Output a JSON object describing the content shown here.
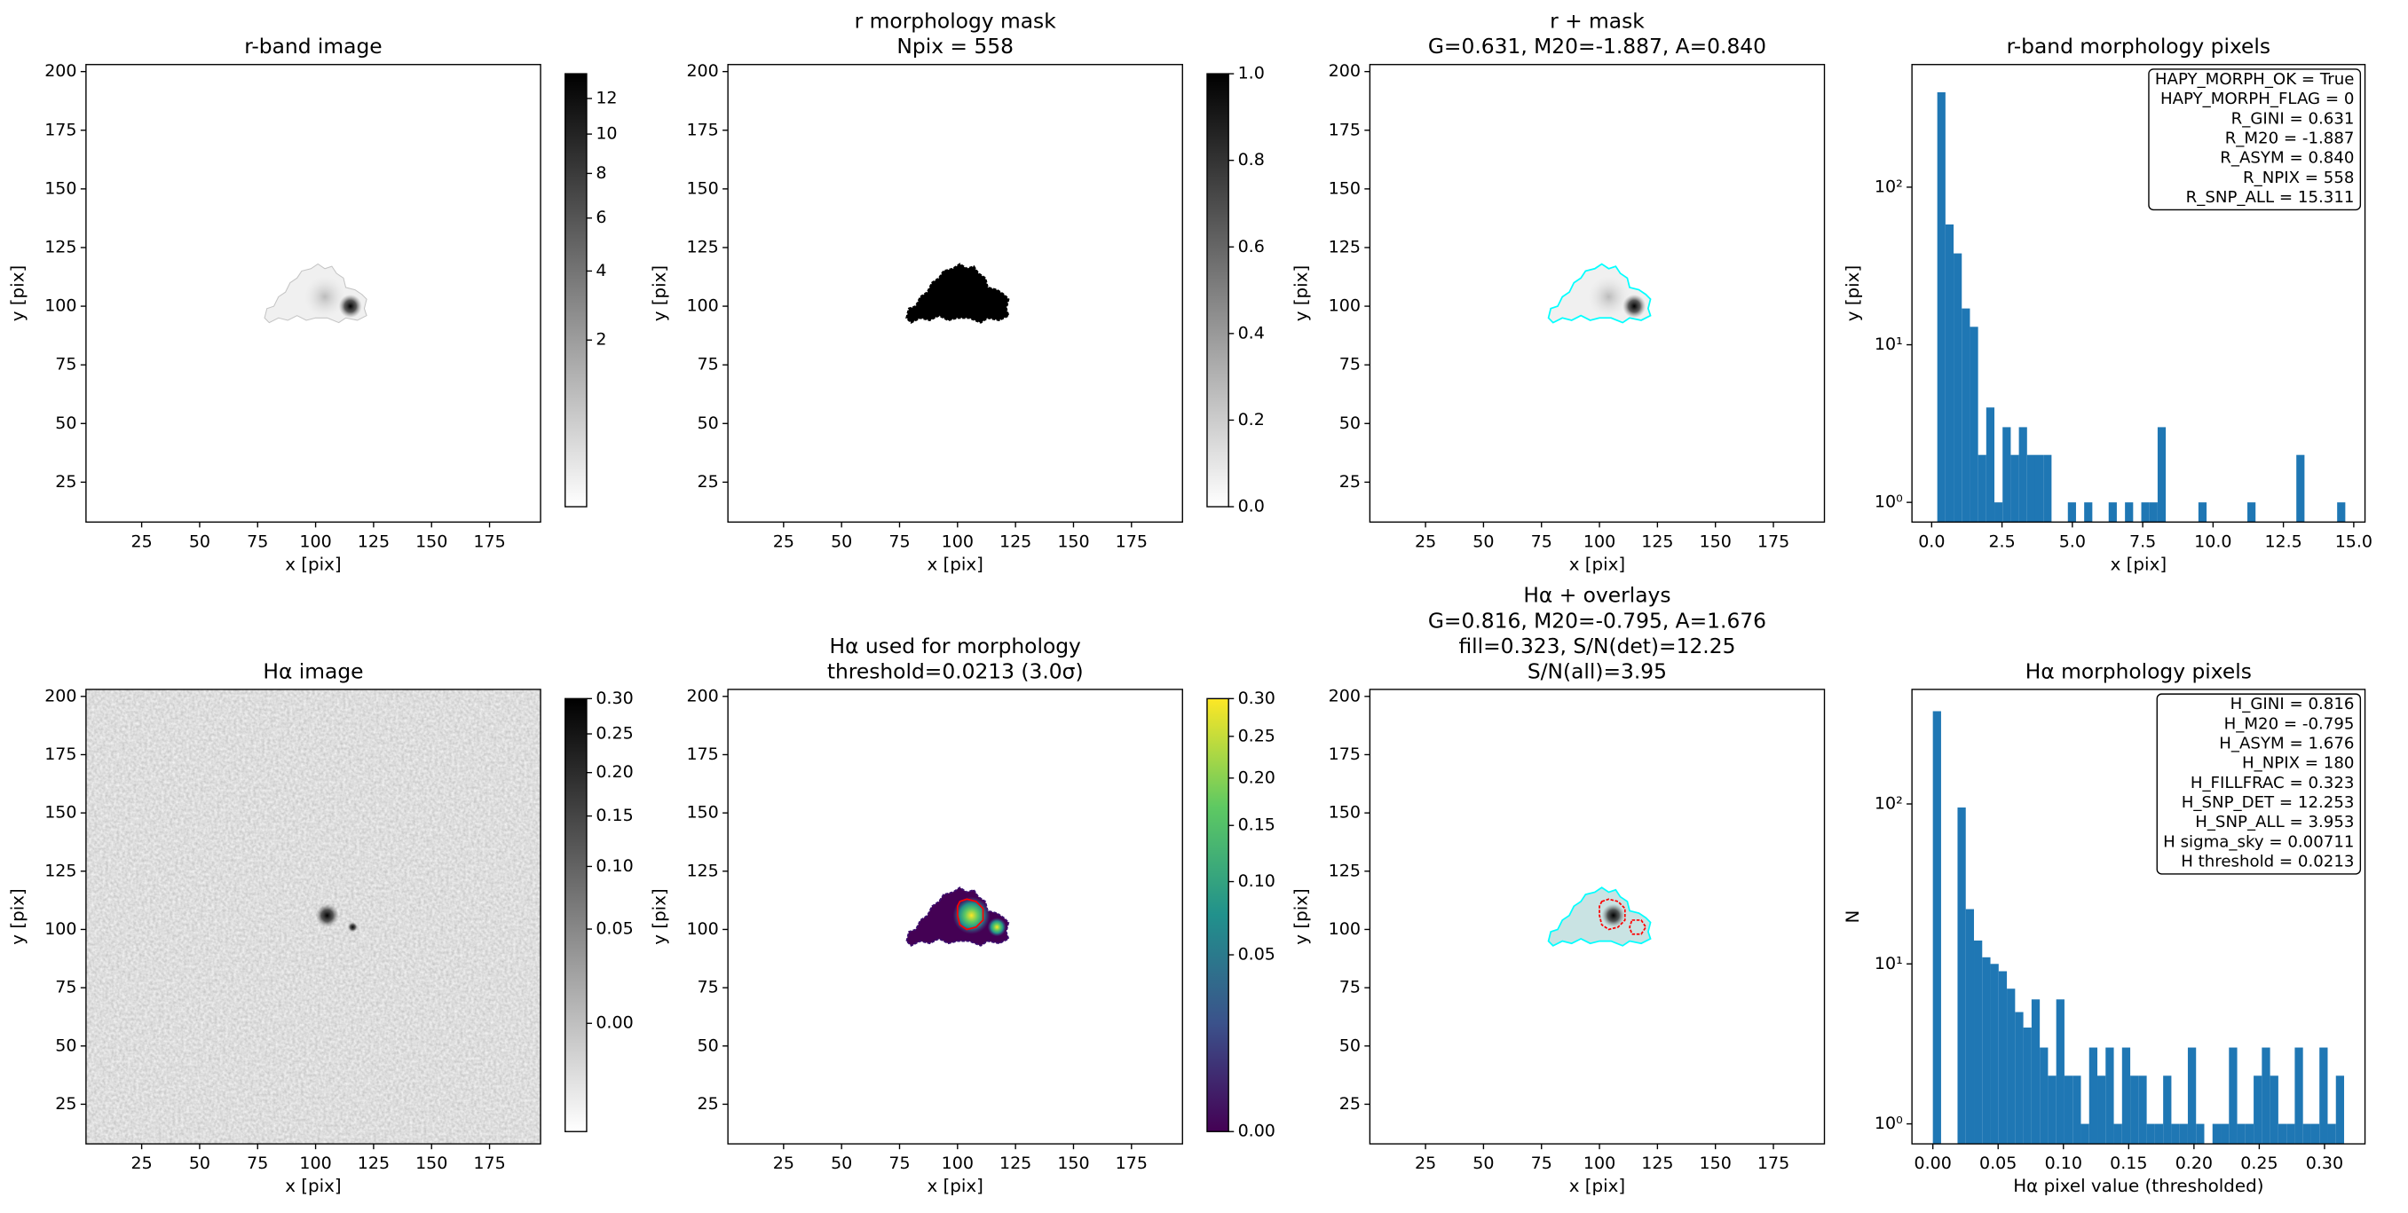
{
  "chart_data": [
    {
      "type": "image",
      "title": [
        "r-band image"
      ],
      "xlabel": "x [pix]",
      "ylabel": "y [pix]",
      "xlim": [
        1,
        197
      ],
      "ylim": [
        8,
        203
      ],
      "xticks": [
        25,
        50,
        75,
        100,
        125,
        150,
        175
      ],
      "yticks": [
        25,
        50,
        75,
        100,
        125,
        150,
        175,
        200
      ],
      "colorbar": {
        "cmap": "gray_r",
        "scale": "sqrt",
        "clim": [
          0,
          13.5
        ],
        "ticks": [
          2,
          4,
          6,
          8,
          10,
          12
        ]
      }
    },
    {
      "type": "image",
      "title": [
        "r morphology mask",
        "Npix = 558"
      ],
      "xlabel": "x [pix]",
      "ylabel": "y [pix]",
      "xlim": [
        1,
        197
      ],
      "ylim": [
        8,
        203
      ],
      "xticks": [
        25,
        50,
        75,
        100,
        125,
        150,
        175
      ],
      "yticks": [
        25,
        50,
        75,
        100,
        125,
        150,
        175,
        200
      ],
      "colorbar": {
        "cmap": "binary",
        "scale": "linear",
        "clim": [
          0,
          1
        ],
        "ticks": [
          {
            "value": 0,
            "label": "0.0"
          },
          0.2,
          0.4,
          0.6,
          0.8,
          {
            "value": 1,
            "label": "1.0"
          }
        ]
      }
    },
    {
      "type": "image",
      "title": [
        "r + mask",
        "G=0.631, M20=-1.887, A=0.840"
      ],
      "xlabel": "x [pix]",
      "ylabel": "y [pix]",
      "xlim": [
        1,
        197
      ],
      "ylim": [
        8,
        203
      ],
      "xticks": [
        25,
        50,
        75,
        100,
        125,
        150,
        175
      ],
      "yticks": [
        25,
        50,
        75,
        100,
        125,
        150,
        175,
        200
      ],
      "contour_colors": [
        "cyan"
      ]
    },
    {
      "type": "histogram",
      "title": [
        "r-band morphology pixels"
      ],
      "xlabel": "x [pix]",
      "ylabel": "y [pix]",
      "color": "#1f77b4",
      "yscale": "log",
      "xlim": [
        -0.7,
        15.4
      ],
      "ylim": [
        0.75,
        600
      ],
      "xticks": [
        {
          "value": 0,
          "label": "0.0"
        },
        2.5,
        {
          "value": 5,
          "label": "5.0"
        },
        7.5,
        {
          "value": 10,
          "label": "10.0"
        },
        12.5,
        {
          "value": 15,
          "label": "15.0"
        }
      ],
      "yticks": [
        {
          "value": 1,
          "label": "10⁰"
        },
        {
          "value": 10,
          "label": "10¹"
        },
        {
          "value": 100,
          "label": "10²"
        }
      ],
      "bins": [
        0.2,
        0.49,
        0.78,
        1.07,
        1.36,
        1.65,
        1.94,
        2.23,
        2.52,
        2.81,
        3.1,
        3.39,
        3.68,
        3.97,
        4.26,
        4.55,
        4.84,
        5.13,
        5.42,
        5.71,
        6,
        6.29,
        6.58,
        6.87,
        7.16,
        7.45,
        7.74,
        8.03,
        8.32,
        8.61,
        8.9,
        9.19,
        9.48,
        9.77,
        10.06,
        10.35,
        10.64,
        10.93,
        11.22,
        11.51,
        11.8,
        12.09,
        12.38,
        12.67,
        12.96,
        13.25,
        13.54,
        13.83,
        14.12,
        14.41,
        14.7
      ],
      "values": [
        400,
        58,
        38,
        17,
        13,
        2,
        4,
        1,
        3,
        2,
        3,
        2,
        2,
        2,
        0,
        0,
        1,
        0,
        1,
        0,
        0,
        1,
        0,
        1,
        0,
        1,
        1,
        3,
        0,
        0,
        0,
        0,
        1,
        0,
        0,
        0,
        0,
        0,
        1,
        0,
        0,
        0,
        0,
        0,
        2,
        0,
        0,
        0,
        0,
        1
      ],
      "annotation": [
        "HAPY_MORPH_OK = True",
        "HAPY_MORPH_FLAG = 0",
        "R_GINI = 0.631",
        "R_M20 = -1.887",
        "R_ASYM = 0.840",
        "R_NPIX = 558",
        "R_SNP_ALL = 15.311"
      ]
    },
    {
      "type": "image",
      "title": [
        "Hα image"
      ],
      "xlabel": "x [pix]",
      "ylabel": "y [pix]",
      "xlim": [
        1,
        197
      ],
      "ylim": [
        8,
        203
      ],
      "xticks": [
        25,
        50,
        75,
        100,
        125,
        150,
        175
      ],
      "yticks": [
        25,
        50,
        75,
        100,
        125,
        150,
        175,
        200
      ],
      "colorbar": {
        "cmap": "gray_r",
        "scale": "sqrt",
        "clim": [
          -0.02,
          0.3
        ],
        "ticks": [
          {
            "value": 0,
            "label": "0.00"
          },
          0.05,
          {
            "value": 0.1,
            "label": "0.10"
          },
          0.15,
          {
            "value": 0.2,
            "label": "0.20"
          },
          0.25,
          {
            "value": 0.3,
            "label": "0.30"
          }
        ]
      }
    },
    {
      "type": "image",
      "title": [
        "Hα used for morphology",
        "threshold=0.0213 (3.0σ)"
      ],
      "xlabel": "x [pix]",
      "ylabel": "y [pix]",
      "xlim": [
        1,
        197
      ],
      "ylim": [
        8,
        203
      ],
      "xticks": [
        25,
        50,
        75,
        100,
        125,
        150,
        175
      ],
      "yticks": [
        25,
        50,
        75,
        100,
        125,
        150,
        175,
        200
      ],
      "colorbar": {
        "cmap": "viridis",
        "scale": "sqrt",
        "clim": [
          0,
          0.3
        ],
        "ticks": [
          {
            "value": 0,
            "label": "0.00"
          },
          0.05,
          {
            "value": 0.1,
            "label": "0.10"
          },
          0.15,
          {
            "value": 0.2,
            "label": "0.20"
          },
          0.25,
          {
            "value": 0.3,
            "label": "0.30"
          }
        ]
      },
      "contour_colors": [
        "red"
      ]
    },
    {
      "type": "image",
      "title": [
        "Hα + overlays",
        "G=0.816, M20=-0.795, A=1.676",
        "fill=0.323, S/N(det)=12.25",
        "S/N(all)=3.95"
      ],
      "xlabel": "x [pix]",
      "ylabel": "y [pix]",
      "xlim": [
        1,
        197
      ],
      "ylim": [
        8,
        203
      ],
      "xticks": [
        25,
        50,
        75,
        100,
        125,
        150,
        175
      ],
      "yticks": [
        25,
        50,
        75,
        100,
        125,
        150,
        175,
        200
      ],
      "contour_colors": [
        "cyan",
        "red"
      ]
    },
    {
      "type": "histogram",
      "title": [
        "Hα morphology pixels"
      ],
      "xlabel": "Hα pixel value (thresholded)",
      "ylabel": "N",
      "color": "#1f77b4",
      "yscale": "log",
      "xlim": [
        -0.016,
        0.331
      ],
      "ylim": [
        0.75,
        520
      ],
      "xticks": [
        {
          "value": 0,
          "label": "0.00"
        },
        0.05,
        {
          "value": 0.1,
          "label": "0.10"
        },
        0.15,
        {
          "value": 0.2,
          "label": "0.20"
        },
        0.25,
        {
          "value": 0.3,
          "label": "0.30"
        }
      ],
      "yticks": [
        {
          "value": 1,
          "label": "10⁰"
        },
        {
          "value": 10,
          "label": "10¹"
        },
        {
          "value": 100,
          "label": "10²"
        }
      ],
      "bins": [
        0,
        0.0063,
        0.0126,
        0.0189,
        0.0252,
        0.0315,
        0.0378,
        0.0441,
        0.0504,
        0.0567,
        0.063,
        0.0693,
        0.0756,
        0.0819,
        0.0882,
        0.0945,
        0.1008,
        0.1071,
        0.1134,
        0.1197,
        0.126,
        0.1323,
        0.1386,
        0.1449,
        0.1512,
        0.1575,
        0.1638,
        0.1701,
        0.1764,
        0.1827,
        0.189,
        0.1953,
        0.2016,
        0.2079,
        0.2142,
        0.2205,
        0.2268,
        0.2331,
        0.2394,
        0.2457,
        0.252,
        0.2583,
        0.2646,
        0.2709,
        0.2772,
        0.2835,
        0.2898,
        0.2961,
        0.3024,
        0.3087,
        0.315
      ],
      "values": [
        380,
        0,
        0,
        95,
        22,
        14,
        11,
        10,
        9,
        7,
        5,
        4,
        6,
        3,
        2,
        6,
        2,
        2,
        1,
        3,
        2,
        3,
        1,
        3,
        2,
        2,
        1,
        1,
        2,
        1,
        1,
        3,
        1,
        0,
        1,
        1,
        3,
        1,
        1,
        2,
        3,
        2,
        1,
        1,
        3,
        1,
        1,
        3,
        1,
        2
      ],
      "annotation": [
        "H_GINI = 0.816",
        "H_M20 = -0.795",
        "H_ASYM = 1.676",
        "H_NPIX = 180",
        "H_FILLFRAC = 0.323",
        "H_SNP_DET = 12.253",
        "H_SNP_ALL = 3.953",
        "H sigma_sky = 0.00711",
        "H threshold = 0.0213"
      ]
    }
  ]
}
